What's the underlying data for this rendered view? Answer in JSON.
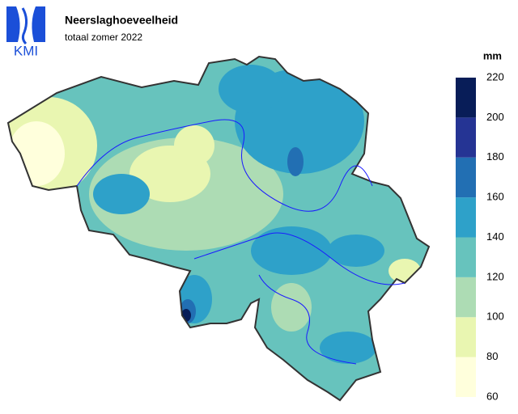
{
  "header": {
    "title": "Neerslaghoeveelheid",
    "subtitle": "totaal zomer 2022"
  },
  "logo": {
    "text": "KMI"
  },
  "legend": {
    "unit": "mm",
    "ticks": [
      60,
      80,
      100,
      120,
      140,
      160,
      180,
      200,
      220
    ],
    "colors": [
      "#ffffdc",
      "#e9f6b1",
      "#addcb4",
      "#67c3bd",
      "#2ea1c9",
      "#226fb3",
      "#253494",
      "#081d58"
    ]
  }
}
